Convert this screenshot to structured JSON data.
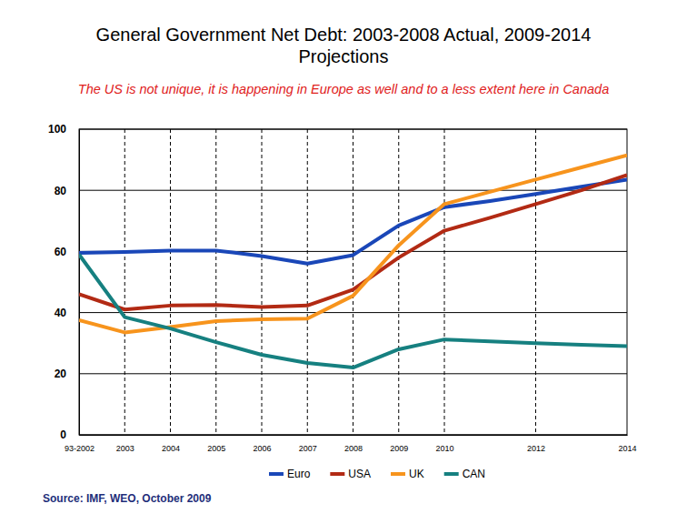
{
  "chart_data": {
    "type": "line",
    "title": "General Government Net Debt: 2003-2008 Actual, 2009-2014 Projections",
    "subtitle": "The US is not unique, it is happening in Europe as well and to a less extent here in Canada",
    "source": "Source: IMF, WEO, October 2009",
    "categories": [
      "93-2002",
      "2003",
      "2004",
      "2005",
      "2006",
      "2007",
      "2008",
      "2009",
      "2010",
      null,
      "2012",
      null,
      "2014"
    ],
    "series": [
      {
        "name": "Euro",
        "color": "#1a47b8",
        "values": [
          59.5,
          59.8,
          60.3,
          60.3,
          58.5,
          56,
          58.8,
          68.5,
          74.5,
          76.5,
          78.8,
          81.2,
          83.5
        ]
      },
      {
        "name": "USA",
        "color": "#b22a14",
        "values": [
          46,
          41,
          42.3,
          42.5,
          41.8,
          42.3,
          47.5,
          58,
          66.8,
          71,
          75.5,
          80,
          85
        ]
      },
      {
        "name": "UK",
        "color": "#f7941d",
        "values": [
          37.5,
          33.5,
          35.3,
          37.2,
          37.8,
          38,
          45.5,
          62,
          75.5,
          79.5,
          83.5,
          87.5,
          91.5
        ]
      },
      {
        "name": "CAN",
        "color": "#168080",
        "values": [
          59,
          38.5,
          34.8,
          30.3,
          26.2,
          23.5,
          22,
          28,
          31.2,
          30.6,
          30,
          29.5,
          29
        ]
      }
    ],
    "ylim": [
      0,
      100
    ],
    "yticks": [
      0,
      20,
      40,
      60,
      80,
      100
    ],
    "grid": true,
    "legend": "bottom"
  }
}
